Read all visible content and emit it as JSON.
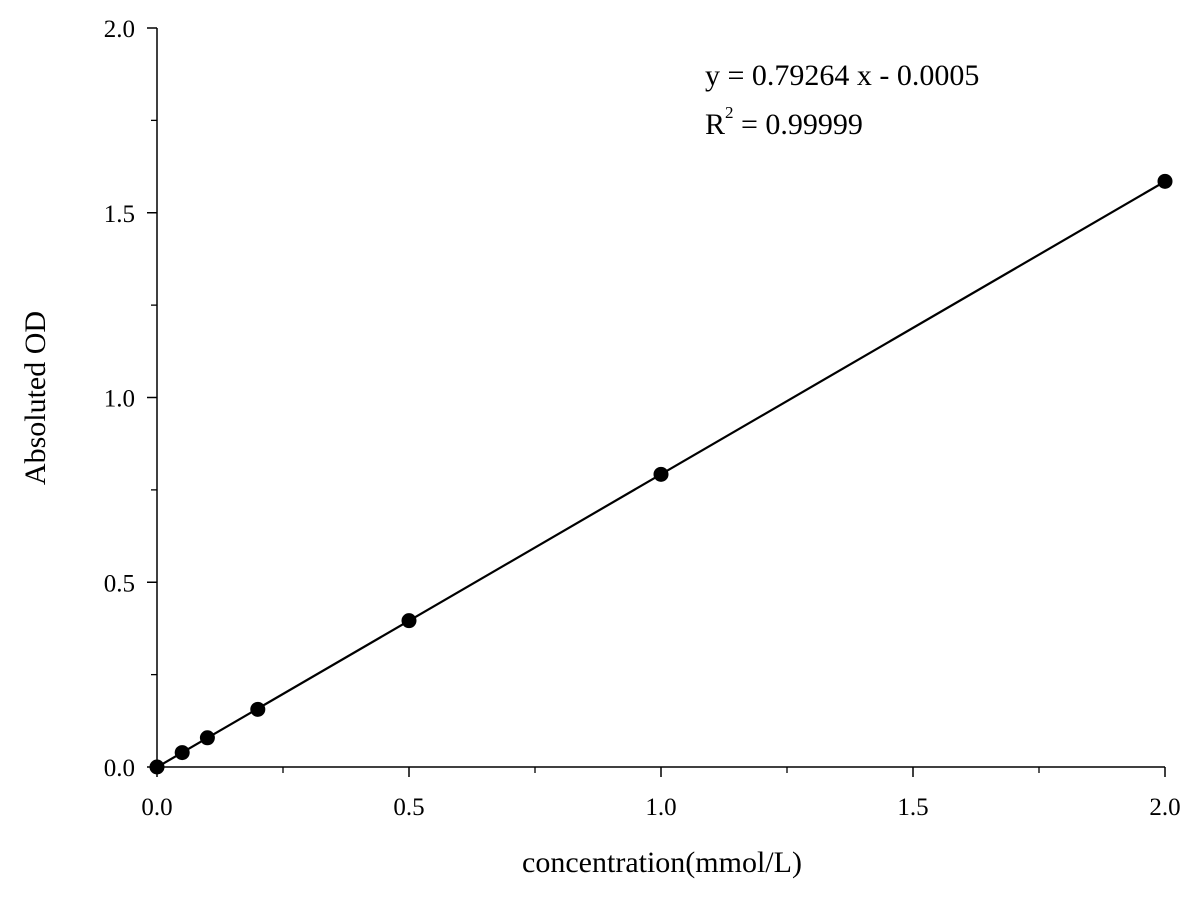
{
  "chart_data": {
    "type": "scatter",
    "title": "",
    "xlabel": "concentration(mmol/L)",
    "ylabel": "Absoluted OD",
    "xlim": [
      0,
      2.0
    ],
    "ylim": [
      0,
      2.0
    ],
    "x_ticks": [
      "0.0",
      "0.5",
      "1.0",
      "1.5",
      "2.0"
    ],
    "y_ticks": [
      "0.0",
      "0.5",
      "1.0",
      "1.5",
      "2.0"
    ],
    "grid": false,
    "legend": "none",
    "series": [
      {
        "x": [
          0,
          0.05,
          0.1,
          0.2,
          0.5,
          1.0,
          2.0
        ],
        "y": [
          0,
          0.039,
          0.079,
          0.156,
          0.396,
          0.792,
          1.585
        ]
      }
    ],
    "fit": {
      "slope": 0.79264,
      "intercept": -0.0005
    },
    "annotations": {
      "equation": "y = 0.79264 x - 0.0005",
      "r2_base": "R",
      "r2_sup": "2",
      "r2_value": " = 0.99999"
    },
    "colors": {
      "ink": "#000000",
      "background": "#ffffff"
    }
  }
}
